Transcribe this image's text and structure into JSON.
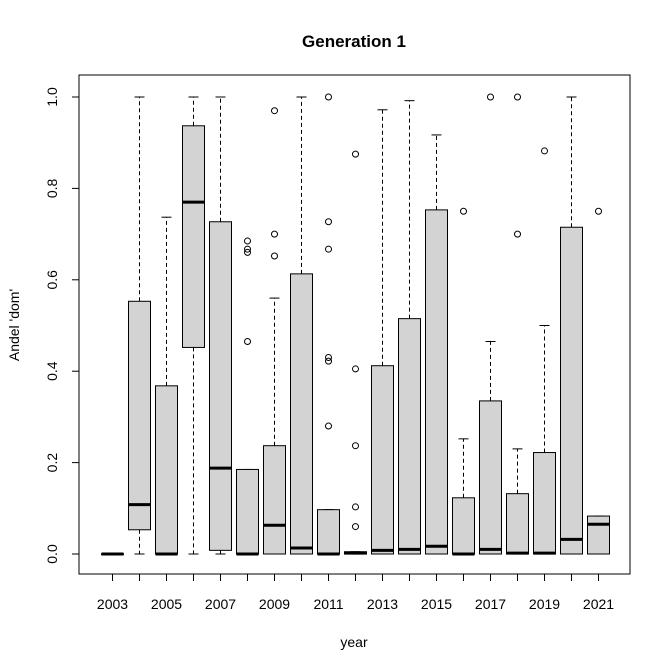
{
  "chart_data": {
    "type": "boxplot",
    "title": "Generation 1",
    "xlabel": "year",
    "ylabel": "Andel 'dom'",
    "ylim": [
      0,
      1
    ],
    "y_ticks": [
      "0.0",
      "0.2",
      "0.4",
      "0.6",
      "0.8",
      "1.0"
    ],
    "y_tick_values": [
      0,
      0.2,
      0.4,
      0.6,
      0.8,
      1.0
    ],
    "x_tick_labels": [
      "2003",
      "2005",
      "2007",
      "2009",
      "2011",
      "2013",
      "2015",
      "2017",
      "2019",
      "2021"
    ],
    "categories": [
      "2003",
      "2004",
      "2005",
      "2006",
      "2007",
      "2008",
      "2009",
      "2010",
      "2011",
      "2012",
      "2013",
      "2014",
      "2015",
      "2016",
      "2017",
      "2018",
      "2019",
      "2020",
      "2021"
    ],
    "box_fill": "#d3d3d3",
    "boxes": [
      {
        "year": "2003",
        "whisker_low": 0.0,
        "q1": 0.0,
        "median": 0.0,
        "q3": 0.0,
        "whisker_high": 0.0,
        "outliers": []
      },
      {
        "year": "2004",
        "whisker_low": 0.0,
        "q1": 0.053,
        "median": 0.108,
        "q3": 0.553,
        "whisker_high": 1.0,
        "outliers": []
      },
      {
        "year": "2005",
        "whisker_low": 0.0,
        "q1": 0.0,
        "median": 0.0,
        "q3": 0.368,
        "whisker_high": 0.737,
        "outliers": []
      },
      {
        "year": "2006",
        "whisker_low": 0.0,
        "q1": 0.452,
        "median": 0.77,
        "q3": 0.937,
        "whisker_high": 1.0,
        "outliers": []
      },
      {
        "year": "2007",
        "whisker_low": 0.0,
        "q1": 0.008,
        "median": 0.188,
        "q3": 0.727,
        "whisker_high": 1.0,
        "outliers": []
      },
      {
        "year": "2008",
        "whisker_low": 0.0,
        "q1": 0.0,
        "median": 0.0,
        "q3": 0.185,
        "whisker_high": 0.185,
        "outliers": [
          0.465,
          0.66,
          0.667,
          0.685
        ]
      },
      {
        "year": "2009",
        "whisker_low": 0.0,
        "q1": 0.0,
        "median": 0.063,
        "q3": 0.237,
        "whisker_high": 0.56,
        "outliers": [
          0.652,
          0.7,
          0.97
        ]
      },
      {
        "year": "2010",
        "whisker_low": 0.0,
        "q1": 0.0,
        "median": 0.013,
        "q3": 0.613,
        "whisker_high": 1.0,
        "outliers": []
      },
      {
        "year": "2011",
        "whisker_low": 0.0,
        "q1": 0.0,
        "median": 0.0,
        "q3": 0.097,
        "whisker_high": 0.097,
        "outliers": [
          0.28,
          0.422,
          0.43,
          0.667,
          0.727,
          1.0
        ]
      },
      {
        "year": "2012",
        "whisker_low": 0.0,
        "q1": 0.0,
        "median": 0.002,
        "q3": 0.005,
        "whisker_high": 0.005,
        "outliers": [
          0.06,
          0.103,
          0.237,
          0.405,
          0.875
        ]
      },
      {
        "year": "2013",
        "whisker_low": 0.0,
        "q1": 0.0,
        "median": 0.008,
        "q3": 0.412,
        "whisker_high": 0.972,
        "outliers": []
      },
      {
        "year": "2014",
        "whisker_low": 0.0,
        "q1": 0.0,
        "median": 0.01,
        "q3": 0.515,
        "whisker_high": 0.992,
        "outliers": []
      },
      {
        "year": "2015",
        "whisker_low": 0.0,
        "q1": 0.0,
        "median": 0.017,
        "q3": 0.753,
        "whisker_high": 0.917,
        "outliers": []
      },
      {
        "year": "2016",
        "whisker_low": 0.0,
        "q1": 0.0,
        "median": 0.0,
        "q3": 0.123,
        "whisker_high": 0.252,
        "outliers": [
          0.75
        ]
      },
      {
        "year": "2017",
        "whisker_low": 0.0,
        "q1": 0.0,
        "median": 0.01,
        "q3": 0.335,
        "whisker_high": 0.465,
        "outliers": [
          1.0
        ]
      },
      {
        "year": "2018",
        "whisker_low": 0.0,
        "q1": 0.0,
        "median": 0.002,
        "q3": 0.132,
        "whisker_high": 0.23,
        "outliers": [
          0.7,
          1.0
        ]
      },
      {
        "year": "2019",
        "whisker_low": 0.0,
        "q1": 0.0,
        "median": 0.002,
        "q3": 0.222,
        "whisker_high": 0.5,
        "outliers": [
          0.882
        ]
      },
      {
        "year": "2020",
        "whisker_low": 0.0,
        "q1": 0.0,
        "median": 0.032,
        "q3": 0.715,
        "whisker_high": 1.0,
        "outliers": []
      },
      {
        "year": "2021",
        "whisker_low": 0.0,
        "q1": 0.0,
        "median": 0.065,
        "q3": 0.083,
        "whisker_high": 0.083,
        "outliers": [
          0.75
        ]
      }
    ]
  }
}
